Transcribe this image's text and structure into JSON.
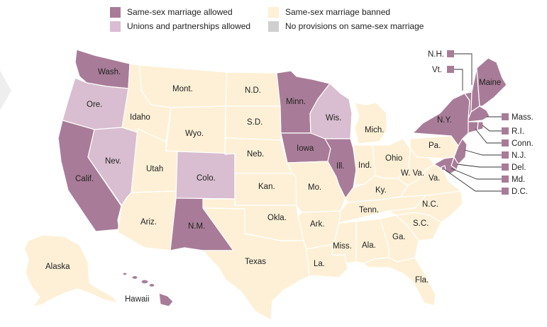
{
  "colors": {
    "allowed": "#a87c98",
    "unions": "#d9bdd0",
    "banned": "#fdf0d6",
    "none": "#cfcfcf"
  },
  "legend": [
    {
      "label": "Same-sex marriage allowed",
      "color": "#a87c98"
    },
    {
      "label": "Unions and partnerships allowed",
      "color": "#d9bdd0"
    },
    {
      "label": "Same-sex marriage banned",
      "color": "#fdf0d6"
    },
    {
      "label": "No provisions on same-sex marriage",
      "color": "#cfcfcf"
    }
  ],
  "states": {
    "wa": {
      "label": "Wash.",
      "status": "allowed"
    },
    "or": {
      "label": "Ore.",
      "status": "unions"
    },
    "ca": {
      "label": "Calif.",
      "status": "allowed"
    },
    "nv": {
      "label": "Nev.",
      "status": "unions"
    },
    "id": {
      "label": "Idaho",
      "status": "banned"
    },
    "mt": {
      "label": "Mont.",
      "status": "banned"
    },
    "wy": {
      "label": "Wyo.",
      "status": "banned"
    },
    "ut": {
      "label": "Utah",
      "status": "banned"
    },
    "az": {
      "label": "Ariz.",
      "status": "banned"
    },
    "co": {
      "label": "Colo.",
      "status": "unions"
    },
    "nm": {
      "label": "N.M.",
      "status": "allowed"
    },
    "nd": {
      "label": "N.D.",
      "status": "banned"
    },
    "sd": {
      "label": "S.D.",
      "status": "banned"
    },
    "ne": {
      "label": "Neb.",
      "status": "banned"
    },
    "ks": {
      "label": "Kan.",
      "status": "banned"
    },
    "ok": {
      "label": "Okla.",
      "status": "banned"
    },
    "tx": {
      "label": "Texas",
      "status": "banned"
    },
    "mn": {
      "label": "Minn.",
      "status": "allowed"
    },
    "ia": {
      "label": "Iowa",
      "status": "allowed"
    },
    "mo": {
      "label": "Mo.",
      "status": "banned"
    },
    "ar": {
      "label": "Ark.",
      "status": "banned"
    },
    "la": {
      "label": "La.",
      "status": "banned"
    },
    "wi": {
      "label": "Wis.",
      "status": "unions"
    },
    "il": {
      "label": "Ill.",
      "status": "allowed"
    },
    "mi": {
      "label": "Mich.",
      "status": "banned"
    },
    "in": {
      "label": "Ind.",
      "status": "banned"
    },
    "oh": {
      "label": "Ohio",
      "status": "banned"
    },
    "ky": {
      "label": "Ky.",
      "status": "banned"
    },
    "tn": {
      "label": "Tenn.",
      "status": "banned"
    },
    "ms": {
      "label": "Miss.",
      "status": "banned"
    },
    "al": {
      "label": "Ala.",
      "status": "banned"
    },
    "ga": {
      "label": "Ga.",
      "status": "banned"
    },
    "fl": {
      "label": "Fla.",
      "status": "banned"
    },
    "sc": {
      "label": "S.C.",
      "status": "banned"
    },
    "nc": {
      "label": "N.C.",
      "status": "banned"
    },
    "va": {
      "label": "Va.",
      "status": "banned"
    },
    "wv": {
      "label": "W. Va.",
      "status": "banned"
    },
    "pa": {
      "label": "Pa.",
      "status": "banned"
    },
    "ny": {
      "label": "N.Y.",
      "status": "allowed"
    },
    "me": {
      "label": "Maine",
      "status": "allowed"
    },
    "nh": {
      "label": "N.H.",
      "status": "allowed"
    },
    "vt": {
      "label": "Vt.",
      "status": "allowed"
    },
    "ma": {
      "label": "Mass.",
      "status": "allowed"
    },
    "ri": {
      "label": "R.I.",
      "status": "allowed"
    },
    "ct": {
      "label": "Conn.",
      "status": "allowed"
    },
    "nj": {
      "label": "N.J.",
      "status": "allowed"
    },
    "de": {
      "label": "Del.",
      "status": "allowed"
    },
    "md": {
      "label": "Md.",
      "status": "allowed"
    },
    "dc": {
      "label": "D.C.",
      "status": "allowed"
    },
    "ak": {
      "label": "Alaska",
      "status": "banned"
    },
    "hi": {
      "label": "Hawaii",
      "status": "allowed"
    }
  }
}
